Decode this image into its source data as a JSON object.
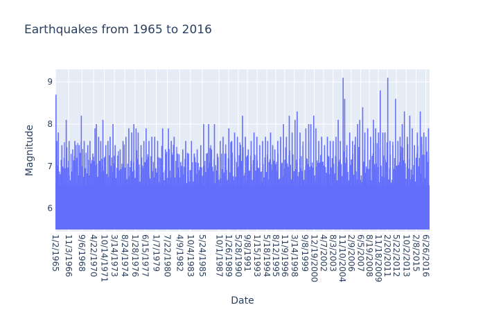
{
  "chart_data": {
    "type": "bar",
    "title": "Earthquakes from 1965 to 2016",
    "xlabel": "Date",
    "ylabel": "Magnitude",
    "ylim": [
      5.45,
      9.3
    ],
    "yticks": [
      "6",
      "7",
      "8",
      "9"
    ],
    "ytick_values": [
      6,
      7,
      8,
      9
    ],
    "xticks": [
      "1/2/1965",
      "11/3/1966",
      "9/6/1968",
      "4/22/1970",
      "10/14/1971",
      "3/14/1973",
      "8/24/1974",
      "1/28/1976",
      "6/15/1977",
      "1/7/1979",
      "7/22/1980",
      "4/9/1982",
      "10/4/1983",
      "5/24/1985",
      "10/1/1987",
      "1/26/1989",
      "5/28/1990",
      "9/8/1991",
      "1/15/1993",
      "5/18/1994",
      "8/12/1995",
      "11/9/1996",
      "3/14/1998",
      "9/8/1999",
      "12/19/2000",
      "4/7/2002",
      "8/3/2003",
      "11/10/2004",
      "2/9/2006",
      "6/5/2007",
      "8/19/2008",
      "11/18/2009",
      "2/20/2011",
      "5/22/2012",
      "10/2/2013",
      "2/8/2015",
      "6/26/2016"
    ],
    "xtick_values": [
      1965.0,
      1966.84,
      1968.68,
      1970.31,
      1971.79,
      1973.2,
      1974.65,
      1976.08,
      1977.46,
      1979.02,
      1980.56,
      1982.27,
      1983.76,
      1985.4,
      1987.75,
      1989.07,
      1990.41,
      1991.69,
      1993.04,
      1994.38,
      1995.61,
      1996.86,
      1998.2,
      1999.69,
      2000.97,
      2002.27,
      2003.59,
      2004.86,
      2006.11,
      2007.43,
      2008.63,
      2009.88,
      2011.14,
      2012.39,
      2013.75,
      2015.11,
      2016.49
    ],
    "x_range": [
      1965.0,
      2017.0
    ],
    "series": [
      {
        "color": "#636efa",
        "baseline": 5.5,
        "spikes": [
          {
            "date": 1965.08,
            "magnitude": 8.7
          },
          {
            "date": 1965.2,
            "magnitude": 7.6
          },
          {
            "date": 1965.4,
            "magnitude": 7.8
          },
          {
            "date": 1965.9,
            "magnitude": 7.5
          },
          {
            "date": 1966.2,
            "magnitude": 7.2
          },
          {
            "date": 1966.5,
            "magnitude": 8.1
          },
          {
            "date": 1966.9,
            "magnitude": 7.6
          },
          {
            "date": 1967.4,
            "magnitude": 7.4
          },
          {
            "date": 1967.7,
            "magnitude": 7.6
          },
          {
            "date": 1968.3,
            "magnitude": 7.5
          },
          {
            "date": 1968.6,
            "magnitude": 8.2
          },
          {
            "date": 1969.0,
            "magnitude": 7.6
          },
          {
            "date": 1969.5,
            "magnitude": 7.5
          },
          {
            "date": 1969.8,
            "magnitude": 7.6
          },
          {
            "date": 1970.2,
            "magnitude": 7.3
          },
          {
            "date": 1970.5,
            "magnitude": 7.9
          },
          {
            "date": 1970.7,
            "magnitude": 8.0
          },
          {
            "date": 1971.0,
            "magnitude": 7.7
          },
          {
            "date": 1971.3,
            "magnitude": 7.6
          },
          {
            "date": 1971.6,
            "magnitude": 8.1
          },
          {
            "date": 1972.0,
            "magnitude": 7.5
          },
          {
            "date": 1972.3,
            "magnitude": 7.6
          },
          {
            "date": 1972.6,
            "magnitude": 7.7
          },
          {
            "date": 1973.0,
            "magnitude": 8.0
          },
          {
            "date": 1973.3,
            "magnitude": 7.5
          },
          {
            "date": 1973.7,
            "magnitude": 7.0
          },
          {
            "date": 1974.0,
            "magnitude": 7.4
          },
          {
            "date": 1974.4,
            "magnitude": 7.6
          },
          {
            "date": 1974.8,
            "magnitude": 7.7
          },
          {
            "date": 1975.2,
            "magnitude": 7.9
          },
          {
            "date": 1975.6,
            "magnitude": 7.8
          },
          {
            "date": 1975.9,
            "magnitude": 8.0
          },
          {
            "date": 1976.2,
            "magnitude": 7.9
          },
          {
            "date": 1976.5,
            "magnitude": 7.8
          },
          {
            "date": 1976.9,
            "magnitude": 7.5
          },
          {
            "date": 1977.3,
            "magnitude": 7.6
          },
          {
            "date": 1977.6,
            "magnitude": 7.9
          },
          {
            "date": 1978.0,
            "magnitude": 7.6
          },
          {
            "date": 1978.4,
            "magnitude": 7.7
          },
          {
            "date": 1978.8,
            "magnitude": 7.7
          },
          {
            "date": 1979.2,
            "magnitude": 7.6
          },
          {
            "date": 1979.5,
            "magnitude": 7.2
          },
          {
            "date": 1979.9,
            "magnitude": 7.9
          },
          {
            "date": 1980.3,
            "magnitude": 7.4
          },
          {
            "date": 1980.7,
            "magnitude": 7.9
          },
          {
            "date": 1981.1,
            "magnitude": 7.6
          },
          {
            "date": 1981.5,
            "magnitude": 7.7
          },
          {
            "date": 1982.0,
            "magnitude": 7.3
          },
          {
            "date": 1982.4,
            "magnitude": 7.1
          },
          {
            "date": 1982.7,
            "magnitude": 7.4
          },
          {
            "date": 1983.1,
            "magnitude": 7.6
          },
          {
            "date": 1983.5,
            "magnitude": 7.3
          },
          {
            "date": 1983.9,
            "magnitude": 7.6
          },
          {
            "date": 1984.3,
            "magnitude": 7.3
          },
          {
            "date": 1984.7,
            "magnitude": 7.4
          },
          {
            "date": 1985.2,
            "magnitude": 7.5
          },
          {
            "date": 1985.6,
            "magnitude": 8.0
          },
          {
            "date": 1986.0,
            "magnitude": 7.3
          },
          {
            "date": 1986.3,
            "magnitude": 8.0
          },
          {
            "date": 1986.7,
            "magnitude": 7.4
          },
          {
            "date": 1987.1,
            "magnitude": 8.0
          },
          {
            "date": 1987.5,
            "magnitude": 7.3
          },
          {
            "date": 1987.9,
            "magnitude": 7.6
          },
          {
            "date": 1988.3,
            "magnitude": 7.7
          },
          {
            "date": 1988.7,
            "magnitude": 7.3
          },
          {
            "date": 1989.1,
            "magnitude": 7.9
          },
          {
            "date": 1989.5,
            "magnitude": 7.6
          },
          {
            "date": 1989.9,
            "magnitude": 7.8
          },
          {
            "date": 1990.3,
            "magnitude": 7.7
          },
          {
            "date": 1990.7,
            "magnitude": 7.3
          },
          {
            "date": 1991.0,
            "magnitude": 8.2
          },
          {
            "date": 1991.4,
            "magnitude": 7.7
          },
          {
            "date": 1991.8,
            "magnitude": 7.4
          },
          {
            "date": 1992.2,
            "magnitude": 7.6
          },
          {
            "date": 1992.6,
            "magnitude": 7.8
          },
          {
            "date": 1993.0,
            "magnitude": 7.7
          },
          {
            "date": 1993.4,
            "magnitude": 7.5
          },
          {
            "date": 1993.8,
            "magnitude": 7.6
          },
          {
            "date": 1994.2,
            "magnitude": 7.7
          },
          {
            "date": 1994.5,
            "magnitude": 7.6
          },
          {
            "date": 1994.9,
            "magnitude": 7.8
          },
          {
            "date": 1995.2,
            "magnitude": 7.5
          },
          {
            "date": 1995.5,
            "magnitude": 7.4
          },
          {
            "date": 1995.9,
            "magnitude": 7.6
          },
          {
            "date": 1996.3,
            "magnitude": 7.7
          },
          {
            "date": 1996.7,
            "magnitude": 8.0
          },
          {
            "date": 1997.1,
            "magnitude": 7.7
          },
          {
            "date": 1997.5,
            "magnitude": 8.2
          },
          {
            "date": 1997.9,
            "magnitude": 7.8
          },
          {
            "date": 1998.3,
            "magnitude": 8.1
          },
          {
            "date": 1998.6,
            "magnitude": 8.3
          },
          {
            "date": 1999.0,
            "magnitude": 7.8
          },
          {
            "date": 1999.4,
            "magnitude": 7.5
          },
          {
            "date": 1999.8,
            "magnitude": 7.9
          },
          {
            "date": 2000.2,
            "magnitude": 8.0
          },
          {
            "date": 2000.5,
            "magnitude": 8.0
          },
          {
            "date": 2000.9,
            "magnitude": 8.2
          },
          {
            "date": 2001.2,
            "magnitude": 7.9
          },
          {
            "date": 2001.6,
            "magnitude": 7.6
          },
          {
            "date": 2002.0,
            "magnitude": 7.7
          },
          {
            "date": 2002.4,
            "magnitude": 7.5
          },
          {
            "date": 2002.8,
            "magnitude": 7.7
          },
          {
            "date": 2003.2,
            "magnitude": 7.6
          },
          {
            "date": 2003.6,
            "magnitude": 7.6
          },
          {
            "date": 2004.0,
            "magnitude": 7.7
          },
          {
            "date": 2004.3,
            "magnitude": 8.1
          },
          {
            "date": 2004.6,
            "magnitude": 7.6
          },
          {
            "date": 2004.98,
            "magnitude": 9.1
          },
          {
            "date": 2005.2,
            "magnitude": 8.6
          },
          {
            "date": 2005.5,
            "magnitude": 7.5
          },
          {
            "date": 2005.9,
            "magnitude": 7.8
          },
          {
            "date": 2006.3,
            "magnitude": 7.6
          },
          {
            "date": 2006.7,
            "magnitude": 7.7
          },
          {
            "date": 2007.0,
            "magnitude": 8.0
          },
          {
            "date": 2007.3,
            "magnitude": 8.1
          },
          {
            "date": 2007.7,
            "magnitude": 8.4
          },
          {
            "date": 2008.0,
            "magnitude": 7.8
          },
          {
            "date": 2008.4,
            "magnitude": 7.9
          },
          {
            "date": 2008.8,
            "magnitude": 7.7
          },
          {
            "date": 2009.2,
            "magnitude": 8.1
          },
          {
            "date": 2009.5,
            "magnitude": 7.9
          },
          {
            "date": 2009.9,
            "magnitude": 7.8
          },
          {
            "date": 2010.15,
            "magnitude": 8.8
          },
          {
            "date": 2010.5,
            "magnitude": 7.8
          },
          {
            "date": 2010.8,
            "magnitude": 7.8
          },
          {
            "date": 2011.19,
            "magnitude": 9.1
          },
          {
            "date": 2011.5,
            "magnitude": 7.6
          },
          {
            "date": 2011.9,
            "magnitude": 7.5
          },
          {
            "date": 2012.28,
            "magnitude": 8.6
          },
          {
            "date": 2012.6,
            "magnitude": 7.6
          },
          {
            "date": 2012.9,
            "magnitude": 7.7
          },
          {
            "date": 2013.2,
            "magnitude": 8.0
          },
          {
            "date": 2013.5,
            "magnitude": 8.3
          },
          {
            "date": 2013.9,
            "magnitude": 7.7
          },
          {
            "date": 2014.25,
            "magnitude": 8.2
          },
          {
            "date": 2014.6,
            "magnitude": 7.9
          },
          {
            "date": 2014.9,
            "magnitude": 7.5
          },
          {
            "date": 2015.3,
            "magnitude": 7.8
          },
          {
            "date": 2015.71,
            "magnitude": 8.3
          },
          {
            "date": 2015.9,
            "magnitude": 7.7
          },
          {
            "date": 2016.2,
            "magnitude": 7.8
          },
          {
            "date": 2016.5,
            "magnitude": 7.7
          },
          {
            "date": 2016.85,
            "magnitude": 7.9
          }
        ]
      }
    ],
    "grid": true
  }
}
